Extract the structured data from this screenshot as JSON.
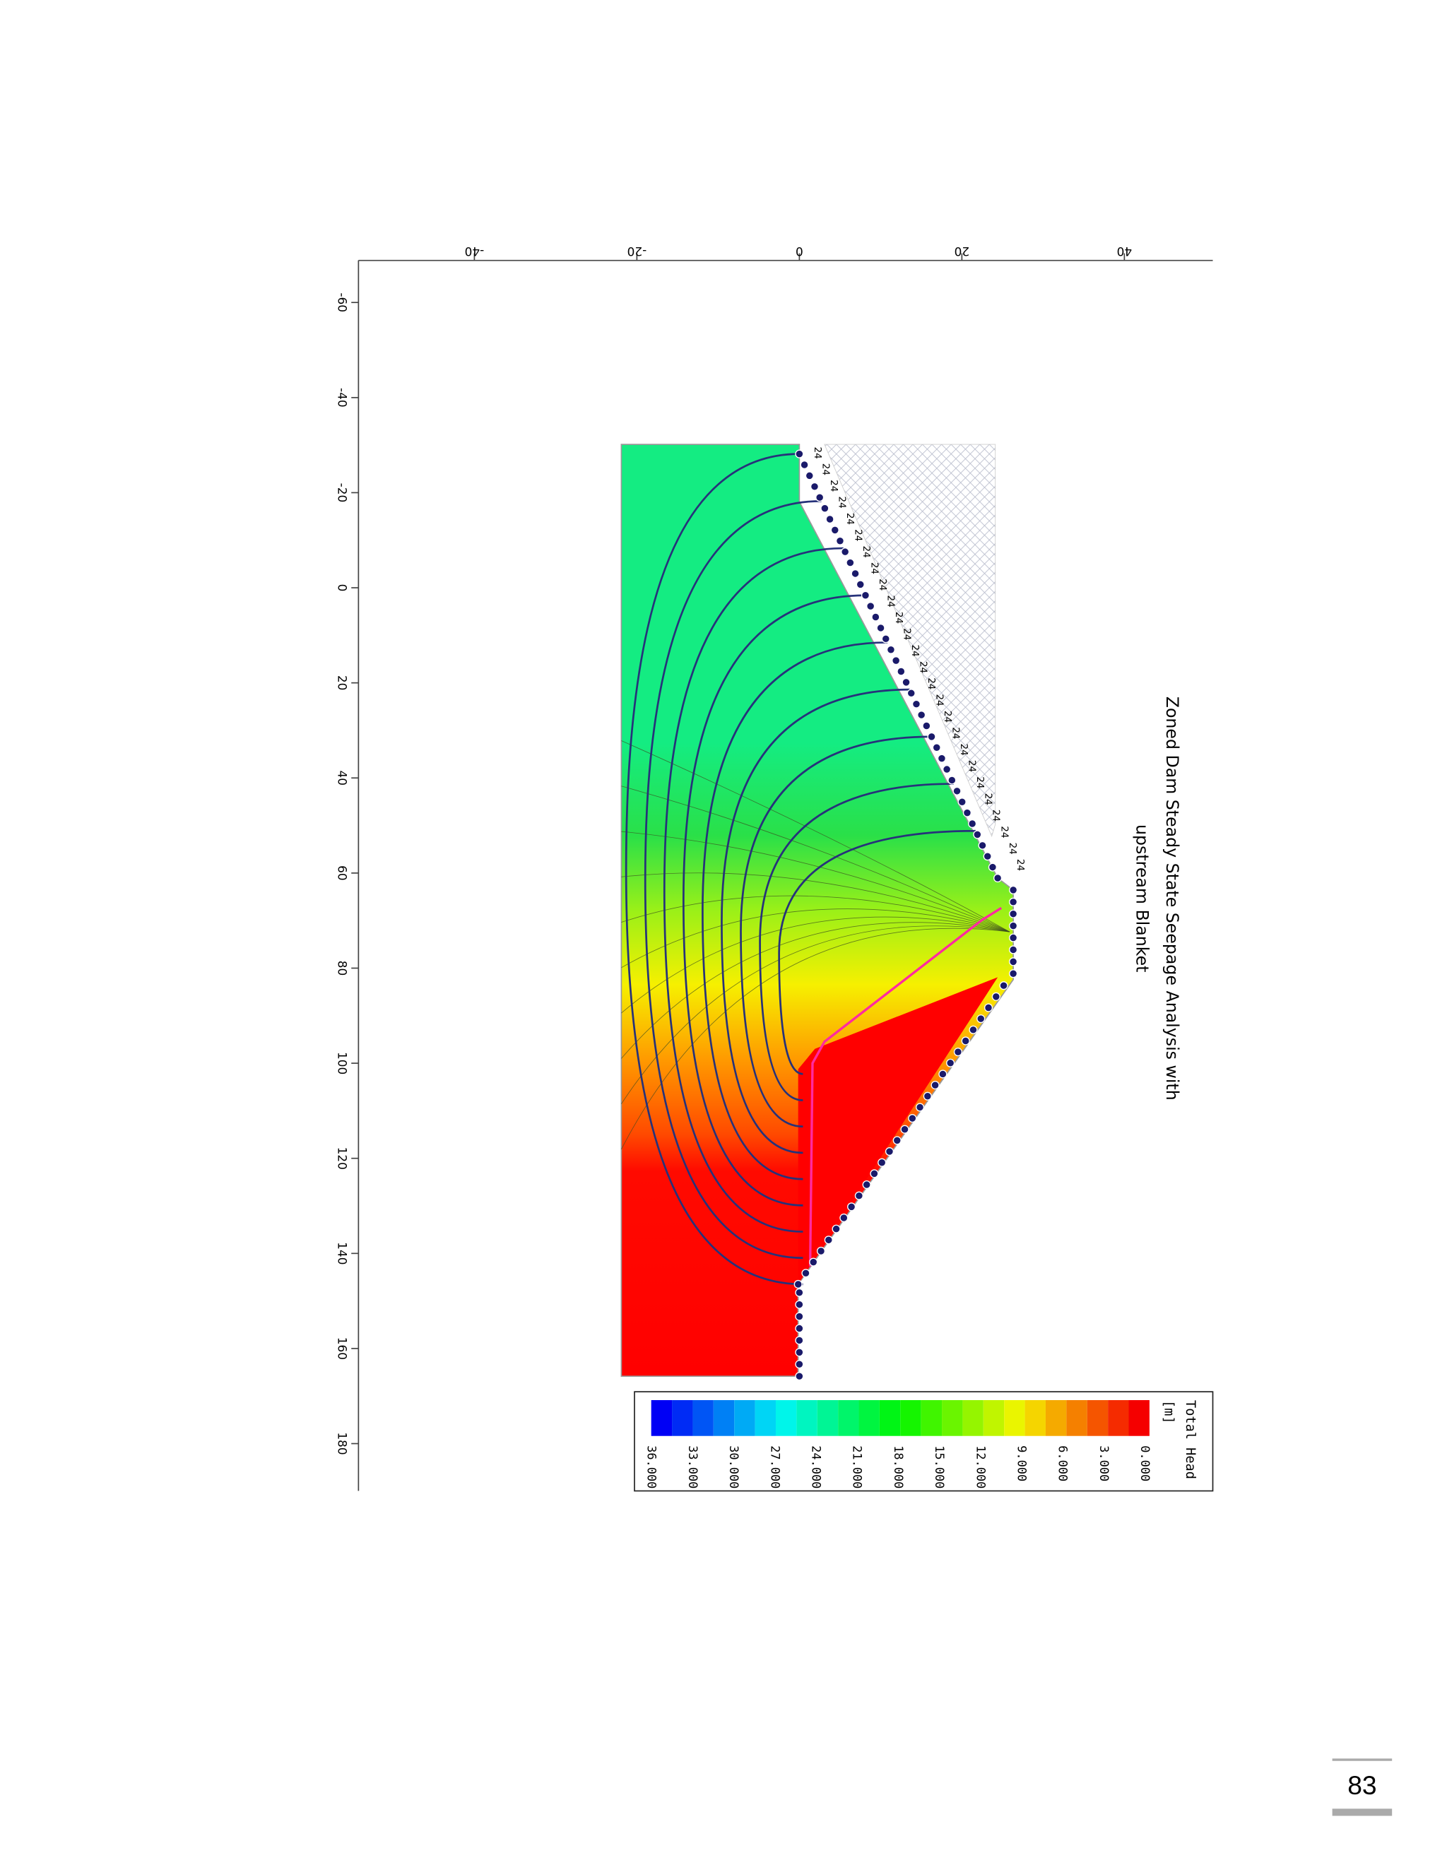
{
  "figure": {
    "title_lines": [
      "Zoned Dam Steady State Seepage Analysis with",
      "upstream Blanket"
    ],
    "top_axis_ticks": [
      -40,
      -20,
      0,
      20,
      40
    ],
    "left_axis_ticks": [
      -60,
      -40,
      -20,
      0,
      20,
      40,
      60,
      80,
      100,
      120,
      140,
      160,
      180
    ],
    "boundary_labels": [
      "24",
      "24",
      "24",
      "24",
      "24",
      "24",
      "24",
      "24",
      "24",
      "24",
      "24",
      "24",
      "24",
      "24",
      "24",
      "24",
      "24",
      "24",
      "24",
      "24",
      "24",
      "24",
      "24",
      "24",
      "24",
      "24"
    ],
    "legend": {
      "title_lines": [
        "Total Head",
        "[m]"
      ],
      "labels": [
        "0.000",
        "3.000",
        "6.000",
        "9.000",
        "12.000",
        "15.000",
        "18.000",
        "21.000",
        "24.000",
        "27.000",
        "30.000",
        "33.000",
        "36.000"
      ]
    }
  },
  "footer": {
    "page_number": "83"
  }
}
